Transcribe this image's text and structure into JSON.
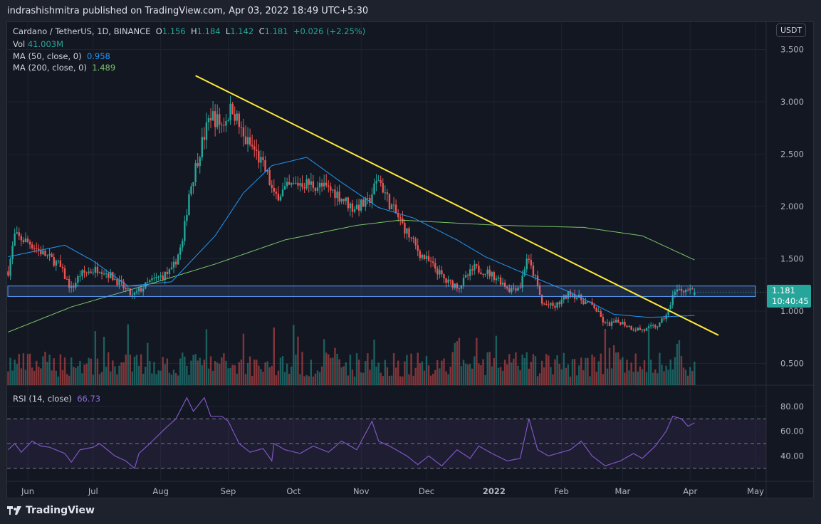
{
  "header": {
    "published": "indrashishmitra published on TradingView.com, Apr 03, 2022 18:49 UTC+5:30"
  },
  "legend": {
    "symbol": "Cardano / TetherUS, 1D, BINANCE",
    "o_label": "O",
    "o": "1.156",
    "h_label": "H",
    "h": "1.184",
    "l_label": "L",
    "l": "1.142",
    "c_label": "C",
    "c": "1.181",
    "change": "+0.026 (+2.25%)",
    "vol_label": "Vol",
    "vol": "41.003M",
    "ma50_label": "MA (50, close, 0)",
    "ma50": "0.958",
    "ma200_label": "MA (200, close, 0)",
    "ma200": "1.489",
    "rsi_label": "RSI (14, close)",
    "rsi": "66.73"
  },
  "price_scale": {
    "currency": "USDT",
    "last_price": "1.181",
    "countdown": "10:40:45"
  },
  "brand": {
    "name": "TradingView"
  },
  "colors": {
    "up": "#26a69a",
    "down": "#ef5350",
    "ma50": "#2196f3",
    "ma200": "#7ac36a",
    "rsi": "#7e57c2",
    "trendline": "#ffeb3b",
    "zone": "#5b9cf6"
  },
  "chart_data": {
    "type": "candlestick",
    "title": "Cardano / TetherUS, 1D, BINANCE",
    "x_unit": "days since 2021-06-01",
    "x_ticks": [
      {
        "label": "Jun",
        "day": 0
      },
      {
        "label": "Jul",
        "day": 30
      },
      {
        "label": "Aug",
        "day": 61
      },
      {
        "label": "Sep",
        "day": 92
      },
      {
        "label": "Oct",
        "day": 122
      },
      {
        "label": "Nov",
        "day": 153
      },
      {
        "label": "Dec",
        "day": 183
      },
      {
        "label": "2022",
        "day": 214
      },
      {
        "label": "Feb",
        "day": 245
      },
      {
        "label": "Mar",
        "day": 273
      },
      {
        "label": "Apr",
        "day": 304
      },
      {
        "label": "May",
        "day": 334
      }
    ],
    "x_range": [
      -9,
      338
    ],
    "price_axis": {
      "ticks": [
        "3.500",
        "3.000",
        "2.500",
        "2.000",
        "1.500",
        "1.000",
        "0.500"
      ],
      "ylim": [
        0.29,
        3.77
      ]
    },
    "close_anchors": [
      [
        -9,
        1.38
      ],
      [
        -6,
        1.72
      ],
      [
        1,
        1.65
      ],
      [
        7,
        1.55
      ],
      [
        14,
        1.45
      ],
      [
        20,
        1.21
      ],
      [
        24,
        1.35
      ],
      [
        33,
        1.41
      ],
      [
        40,
        1.31
      ],
      [
        48,
        1.14
      ],
      [
        56,
        1.28
      ],
      [
        66,
        1.38
      ],
      [
        71,
        1.65
      ],
      [
        74,
        2.13
      ],
      [
        79,
        2.54
      ],
      [
        84,
        2.88
      ],
      [
        89,
        2.78
      ],
      [
        94,
        2.95
      ],
      [
        99,
        2.65
      ],
      [
        104,
        2.54
      ],
      [
        110,
        2.3
      ],
      [
        113,
        2.09
      ],
      [
        118,
        2.16
      ],
      [
        125,
        2.23
      ],
      [
        133,
        2.2
      ],
      [
        141,
        2.14
      ],
      [
        149,
        1.99
      ],
      [
        156,
        2.03
      ],
      [
        161,
        2.27
      ],
      [
        166,
        2.03
      ],
      [
        171,
        1.86
      ],
      [
        175,
        1.72
      ],
      [
        180,
        1.55
      ],
      [
        187,
        1.41
      ],
      [
        192,
        1.28
      ],
      [
        198,
        1.24
      ],
      [
        205,
        1.41
      ],
      [
        210,
        1.38
      ],
      [
        216,
        1.31
      ],
      [
        221,
        1.21
      ],
      [
        226,
        1.24
      ],
      [
        229,
        1.51
      ],
      [
        233,
        1.31
      ],
      [
        236,
        1.07
      ],
      [
        242,
        1.04
      ],
      [
        249,
        1.18
      ],
      [
        254,
        1.11
      ],
      [
        260,
        1.04
      ],
      [
        265,
        0.87
      ],
      [
        272,
        0.9
      ],
      [
        277,
        0.84
      ],
      [
        283,
        0.82
      ],
      [
        290,
        0.87
      ],
      [
        295,
        1.04
      ],
      [
        296,
        1.18
      ],
      [
        301,
        1.21
      ],
      [
        306,
        1.181
      ]
    ],
    "ma50": [
      [
        -9,
        1.52
      ],
      [
        17,
        1.63
      ],
      [
        30,
        1.48
      ],
      [
        46,
        1.24
      ],
      [
        66,
        1.28
      ],
      [
        86,
        1.72
      ],
      [
        99,
        2.13
      ],
      [
        112,
        2.39
      ],
      [
        128,
        2.47
      ],
      [
        144,
        2.23
      ],
      [
        161,
        1.99
      ],
      [
        177,
        1.89
      ],
      [
        197,
        1.68
      ],
      [
        210,
        1.52
      ],
      [
        229,
        1.35
      ],
      [
        249,
        1.18
      ],
      [
        269,
        0.97
      ],
      [
        285,
        0.94
      ],
      [
        306,
        0.958
      ]
    ],
    "ma200": [
      [
        -9,
        0.8
      ],
      [
        20,
        1.04
      ],
      [
        53,
        1.24
      ],
      [
        86,
        1.45
      ],
      [
        118,
        1.68
      ],
      [
        151,
        1.82
      ],
      [
        171,
        1.87
      ],
      [
        216,
        1.82
      ],
      [
        255,
        1.8
      ],
      [
        282,
        1.72
      ],
      [
        306,
        1.489
      ]
    ],
    "trendline": [
      [
        77,
        3.25
      ],
      [
        317,
        0.77
      ]
    ],
    "zone": {
      "low": 1.14,
      "high": 1.24
    },
    "rsi": {
      "ticks": [
        "80.00",
        "60.00",
        "40.00"
      ],
      "ylim": [
        22,
        98
      ],
      "bands": [
        30,
        50,
        70
      ],
      "values": [
        [
          -9,
          45
        ],
        [
          -6,
          50
        ],
        [
          -3,
          43
        ],
        [
          2,
          52
        ],
        [
          6,
          48
        ],
        [
          10,
          47
        ],
        [
          17,
          42
        ],
        [
          20,
          35
        ],
        [
          24,
          45
        ],
        [
          30,
          47
        ],
        [
          33,
          50
        ],
        [
          40,
          40
        ],
        [
          45,
          36
        ],
        [
          49,
          30
        ],
        [
          51,
          42
        ],
        [
          56,
          50
        ],
        [
          63,
          62
        ],
        [
          68,
          70
        ],
        [
          73,
          87
        ],
        [
          76,
          76
        ],
        [
          81,
          87
        ],
        [
          84,
          72
        ],
        [
          89,
          72
        ],
        [
          92,
          68
        ],
        [
          97,
          50
        ],
        [
          102,
          43
        ],
        [
          108,
          46
        ],
        [
          112,
          36
        ],
        [
          113,
          50
        ],
        [
          118,
          45
        ],
        [
          125,
          42
        ],
        [
          131,
          48
        ],
        [
          138,
          43
        ],
        [
          144,
          52
        ],
        [
          151,
          45
        ],
        [
          158,
          68
        ],
        [
          161,
          52
        ],
        [
          166,
          48
        ],
        [
          174,
          40
        ],
        [
          179,
          33
        ],
        [
          184,
          40
        ],
        [
          190,
          32
        ],
        [
          197,
          45
        ],
        [
          203,
          38
        ],
        [
          207,
          48
        ],
        [
          213,
          42
        ],
        [
          220,
          36
        ],
        [
          226,
          38
        ],
        [
          230,
          70
        ],
        [
          234,
          45
        ],
        [
          239,
          40
        ],
        [
          249,
          45
        ],
        [
          254,
          52
        ],
        [
          259,
          40
        ],
        [
          265,
          32
        ],
        [
          272,
          36
        ],
        [
          278,
          42
        ],
        [
          282,
          38
        ],
        [
          288,
          48
        ],
        [
          293,
          60
        ],
        [
          296,
          72
        ],
        [
          300,
          70
        ],
        [
          303,
          64
        ],
        [
          306,
          66.73
        ]
      ]
    }
  }
}
